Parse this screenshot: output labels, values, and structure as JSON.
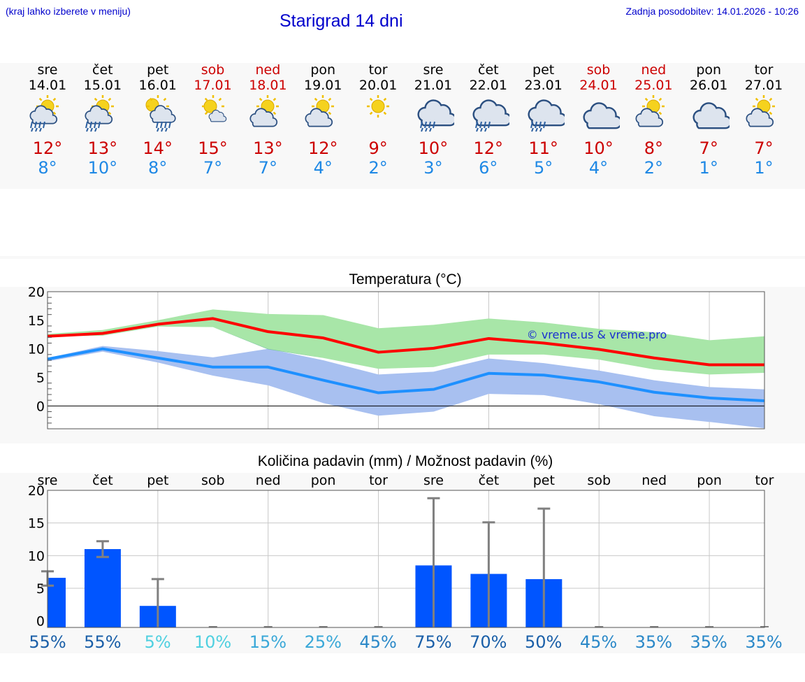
{
  "header": {
    "menu_hint": "(kraj lahko izberete v meniju)",
    "title": "Starigrad 14 dni",
    "updated": "Zadnja posodobitev: 14.01.2026 - 10:26"
  },
  "colors": {
    "max_line": "#ff0000",
    "min_line": "#1e90ff",
    "max_band": "#a8e6a8",
    "min_band": "#a8c0f0",
    "overlap_band": "#7fc4a8",
    "bar": "#0055ff",
    "error_bar": "#808080",
    "weekend_text": "#cc0000"
  },
  "days": [
    {
      "name": "sre",
      "date": "14.01",
      "weekend": false,
      "icon": "sun-cloud-rain-icon",
      "tmax": "12°",
      "tmin": "8°",
      "pct": "55%",
      "pct_color": "#1a5fa8"
    },
    {
      "name": "čet",
      "date": "15.01",
      "weekend": false,
      "icon": "sun-cloud-rain-icon",
      "tmax": "13°",
      "tmin": "10°",
      "pct": "55%",
      "pct_color": "#1a5fa8"
    },
    {
      "name": "pet",
      "date": "16.01",
      "weekend": false,
      "icon": "sun-cloud-light-rain-icon",
      "tmax": "14°",
      "tmin": "8°",
      "pct": "5%",
      "pct_color": "#4fd0e0"
    },
    {
      "name": "sob",
      "date": "17.01",
      "weekend": true,
      "icon": "sun-small-cloud-icon",
      "tmax": "15°",
      "tmin": "7°",
      "pct": "10%",
      "pct_color": "#4fd0e0"
    },
    {
      "name": "ned",
      "date": "18.01",
      "weekend": true,
      "icon": "sun-cloud-icon",
      "tmax": "13°",
      "tmin": "7°",
      "pct": "15%",
      "pct_color": "#3aa8d8"
    },
    {
      "name": "pon",
      "date": "19.01",
      "weekend": false,
      "icon": "sun-cloud-icon",
      "tmax": "12°",
      "tmin": "4°",
      "pct": "25%",
      "pct_color": "#3aa8d8"
    },
    {
      "name": "tor",
      "date": "20.01",
      "weekend": false,
      "icon": "sun-icon",
      "tmax": "9°",
      "tmin": "2°",
      "pct": "45%",
      "pct_color": "#2a88c8"
    },
    {
      "name": "sre",
      "date": "21.01",
      "weekend": false,
      "icon": "cloud-rain-icon",
      "tmax": "10°",
      "tmin": "3°",
      "pct": "75%",
      "pct_color": "#1a5fa8"
    },
    {
      "name": "čet",
      "date": "22.01",
      "weekend": false,
      "icon": "cloud-rain-icon",
      "tmax": "12°",
      "tmin": "6°",
      "pct": "70%",
      "pct_color": "#1a5fa8"
    },
    {
      "name": "pet",
      "date": "23.01",
      "weekend": false,
      "icon": "cloud-rain-icon",
      "tmax": "11°",
      "tmin": "5°",
      "pct": "50%",
      "pct_color": "#1a5fa8"
    },
    {
      "name": "sob",
      "date": "24.01",
      "weekend": true,
      "icon": "cloud-icon",
      "tmax": "10°",
      "tmin": "4°",
      "pct": "45%",
      "pct_color": "#2a88c8"
    },
    {
      "name": "ned",
      "date": "25.01",
      "weekend": true,
      "icon": "sun-cloud-icon",
      "tmax": "8°",
      "tmin": "2°",
      "pct": "35%",
      "pct_color": "#2a88c8"
    },
    {
      "name": "pon",
      "date": "26.01",
      "weekend": false,
      "icon": "cloud-icon",
      "tmax": "7°",
      "tmin": "1°",
      "pct": "35%",
      "pct_color": "#2a88c8"
    },
    {
      "name": "tor",
      "date": "27.01",
      "weekend": false,
      "icon": "sun-cloud-icon",
      "tmax": "7°",
      "tmin": "1°",
      "pct": "35%",
      "pct_color": "#2a88c8"
    }
  ],
  "chart_data": [
    {
      "type": "line",
      "title": "Temperatura (°C)",
      "watermark": "© vreme.us & vreme.pro",
      "ylim": [
        -4,
        20
      ],
      "yticks": [
        0,
        5,
        10,
        15,
        20
      ],
      "x": [
        0,
        1,
        2,
        3,
        4,
        5,
        6,
        7,
        8,
        9,
        10,
        11,
        12,
        13
      ],
      "series": [
        {
          "name": "max",
          "values": [
            12.2,
            12.7,
            14.3,
            15.3,
            13.0,
            11.9,
            9.4,
            10.1,
            11.8,
            11.0,
            9.9,
            8.4,
            7.2,
            7.2
          ]
        },
        {
          "name": "min",
          "values": [
            8.2,
            10.0,
            8.4,
            6.8,
            6.8,
            4.5,
            2.3,
            2.9,
            5.7,
            5.4,
            4.2,
            2.4,
            1.4,
            0.9
          ]
        }
      ],
      "bands": [
        {
          "name": "max_range",
          "upper": [
            12.6,
            13.3,
            15.0,
            16.9,
            16.1,
            15.9,
            13.6,
            14.2,
            15.3,
            14.6,
            13.5,
            12.9,
            11.5,
            12.2
          ],
          "lower": [
            12.2,
            12.3,
            13.9,
            13.8,
            9.9,
            8.4,
            6.5,
            6.8,
            9.0,
            9.0,
            8.1,
            6.4,
            5.5,
            5.8
          ]
        },
        {
          "name": "min_range",
          "upper": [
            8.4,
            10.5,
            9.6,
            8.5,
            10.0,
            8.0,
            5.5,
            6.0,
            8.3,
            7.5,
            6.2,
            4.5,
            3.3,
            2.9
          ],
          "lower": [
            7.8,
            9.5,
            7.6,
            5.3,
            3.6,
            0.5,
            -1.7,
            -1.0,
            2.1,
            1.9,
            0.3,
            -1.8,
            -2.8,
            -3.9
          ]
        }
      ]
    },
    {
      "type": "bar",
      "title": "Količina padavin (mm) / Možnost padavin (%)",
      "ylim": [
        -1,
        20
      ],
      "yticks": [
        0,
        5,
        10,
        15,
        20
      ],
      "categories": [
        "sre",
        "čet",
        "pet",
        "sob",
        "ned",
        "pon",
        "tor",
        "sre",
        "čet",
        "pet",
        "sob",
        "ned",
        "pon",
        "tor"
      ],
      "values": [
        6.6,
        11.0,
        2.3,
        0,
        0,
        0,
        0,
        8.5,
        7.2,
        6.4,
        0,
        0,
        0,
        0
      ],
      "error_low": [
        5.4,
        9.8,
        0,
        0,
        0,
        0,
        0,
        0,
        0,
        0,
        0,
        0,
        0,
        0
      ],
      "error_high": [
        7.6,
        12.2,
        6.4,
        0,
        0,
        0,
        0,
        18.8,
        15.1,
        17.2,
        0,
        0,
        0,
        0
      ]
    }
  ]
}
